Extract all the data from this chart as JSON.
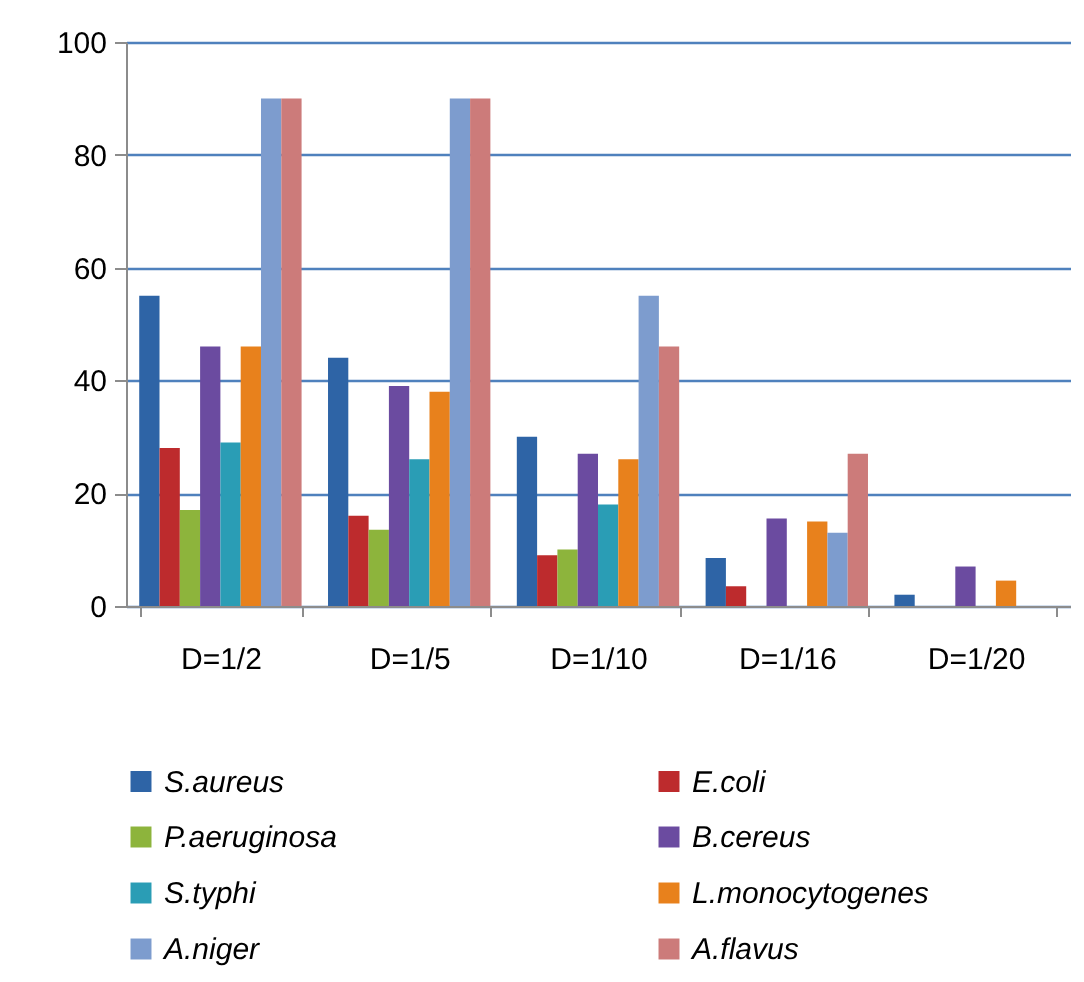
{
  "chart_data": {
    "type": "bar",
    "categories": [
      "D=1/2",
      "D=1/5",
      "D=1/10",
      "D=1/16",
      "D=1/20"
    ],
    "series": [
      {
        "name": "S.aureus",
        "color": "#2e64a6",
        "values": [
          55,
          44,
          30,
          8.5,
          2
        ]
      },
      {
        "name": "E.coli",
        "color": "#bd2b2d",
        "values": [
          28,
          16,
          9,
          3.5,
          null
        ]
      },
      {
        "name": "P.aeruginosa",
        "color": "#8db43c",
        "values": [
          17,
          13.5,
          10,
          null,
          null
        ]
      },
      {
        "name": "B.cereus",
        "color": "#6b4ba0",
        "values": [
          46,
          39,
          27,
          15.5,
          7
        ]
      },
      {
        "name": "S.typhi",
        "color": "#2a9db5",
        "values": [
          29,
          26,
          18,
          null,
          null
        ]
      },
      {
        "name": "L.monocytogenes",
        "color": "#e8811c",
        "values": [
          46,
          38,
          26,
          15,
          4.5
        ]
      },
      {
        "name": "A.niger",
        "color": "#7d9cce",
        "values": [
          90,
          90,
          55,
          13,
          null
        ]
      },
      {
        "name": "A.flavus",
        "color": "#cc7b7a",
        "values": [
          90,
          90,
          46,
          27,
          null
        ]
      }
    ],
    "ylim": [
      0,
      100
    ],
    "yticks": [
      0,
      20,
      40,
      60,
      80,
      100
    ],
    "grid": "y",
    "legend": "bottom"
  }
}
